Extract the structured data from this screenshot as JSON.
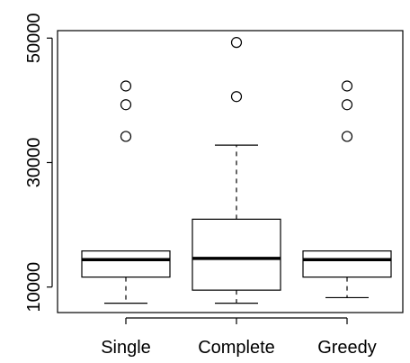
{
  "chart_data": {
    "type": "boxplot",
    "categories": [
      "Single",
      "Complete",
      "Greedy"
    ],
    "yticks": [
      10000,
      30000,
      50000
    ],
    "ytick_labels": [
      "10000",
      "30000",
      "50000"
    ],
    "ylim": [
      5900,
      51200
    ],
    "grid": false,
    "boxes": [
      {
        "category": "Single",
        "whisker_low": 7400,
        "q1": 11600,
        "median": 14400,
        "q3": 15800,
        "whisker_high": 15800,
        "outliers": [
          34200,
          39300,
          42300
        ]
      },
      {
        "category": "Complete",
        "whisker_low": 7400,
        "q1": 9500,
        "median": 14600,
        "q3": 20900,
        "whisker_high": 32800,
        "outliers": [
          40600,
          49300
        ]
      },
      {
        "category": "Greedy",
        "whisker_low": 8300,
        "q1": 11600,
        "median": 14400,
        "q3": 15800,
        "whisker_high": 15800,
        "outliers": [
          34200,
          39300,
          42300
        ]
      }
    ]
  }
}
